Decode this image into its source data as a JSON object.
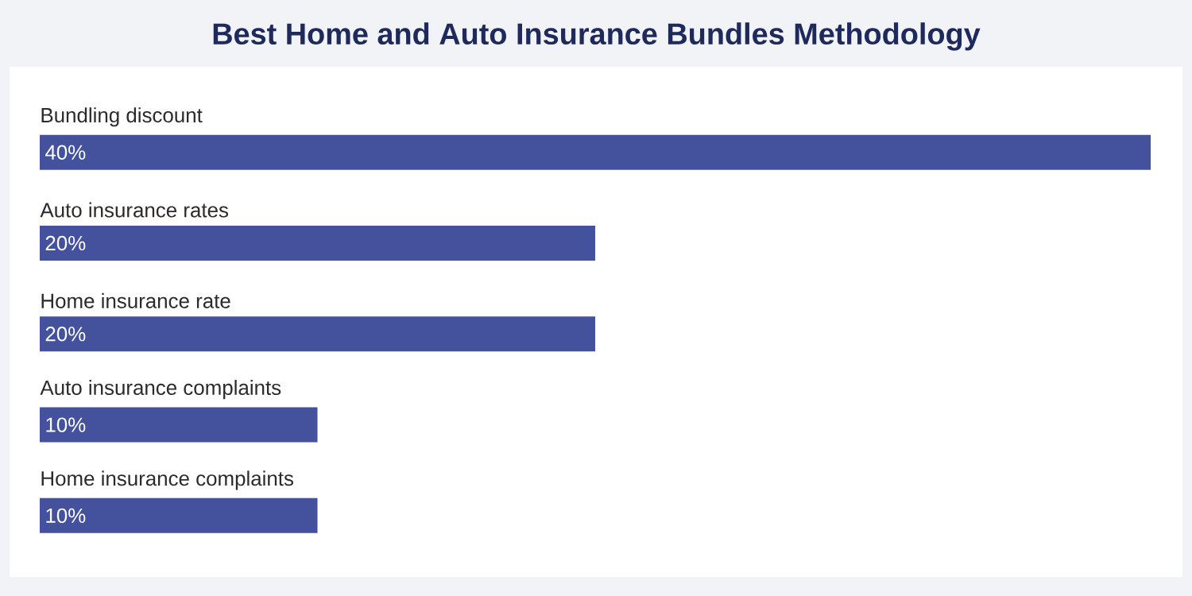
{
  "chart_data": {
    "type": "bar",
    "orientation": "horizontal",
    "title": "Best Home and Auto Insurance Bundles Methodology",
    "categories": [
      "Bundling discount",
      "Auto insurance rates",
      "Home insurance rate",
      "Auto insurance complaints",
      "Home insurance complaints"
    ],
    "values": [
      40,
      20,
      20,
      10,
      10
    ],
    "value_labels": [
      "40%",
      "20%",
      "20%",
      "10%",
      "10%"
    ],
    "color": "#44529e"
  }
}
